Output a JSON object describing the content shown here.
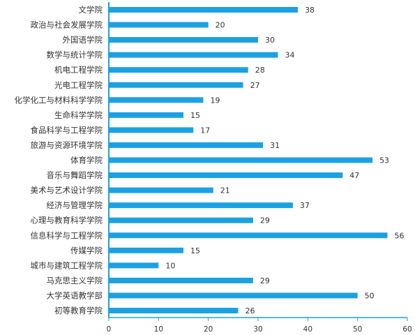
{
  "chart_data": {
    "type": "bar",
    "orientation": "horizontal",
    "categories": [
      "文学院",
      "政治与社会发展学院",
      "外国语学院",
      "数学与统计学院",
      "机电工程学院",
      "光电工程学院",
      "化学化工与材料科学学院",
      "生命科学学院",
      "食品科学与工程学院",
      "旅游与资源环境学院",
      "体育学院",
      "音乐与舞蹈学院",
      "美术与艺术设计学院",
      "经济与管理学院",
      "心理与教育科学学院",
      "信息科学与工程学院",
      "传媒学院",
      "城市与建筑工程学院",
      "马克思主义学院",
      "大学英语教学部",
      "初等教育学院"
    ],
    "values": [
      38,
      20,
      30,
      34,
      28,
      27,
      19,
      15,
      17,
      31,
      53,
      47,
      21,
      37,
      29,
      56,
      15,
      10,
      29,
      50,
      26
    ],
    "xlim": [
      0,
      60
    ],
    "xticks": [
      0,
      10,
      20,
      30,
      40,
      50,
      60
    ],
    "data_labels": true,
    "grid": false,
    "legend": "none",
    "title": "",
    "xlabel": "",
    "ylabel": "",
    "colors": {
      "bar": "#1ba1e2",
      "axis": "#1ba1e2",
      "text": "#333333"
    }
  }
}
